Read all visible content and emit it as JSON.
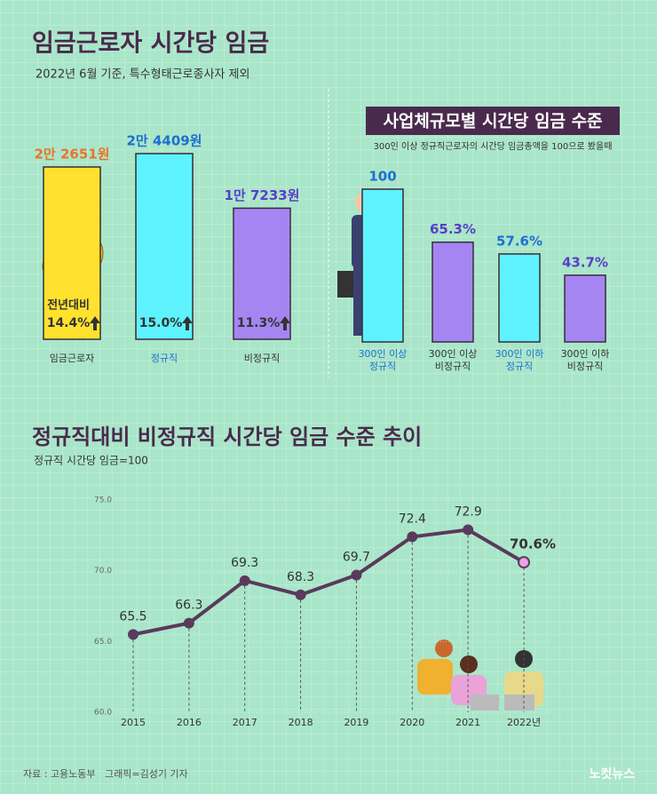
{
  "chart_data": [
    {
      "type": "bar",
      "title": "임금근로자 시간당 임금",
      "subtitle": "2022년 6월 기준, 특수형태근로종사자 제외",
      "categories": [
        "임금근로자",
        "정규직",
        "비정규직"
      ],
      "values": [
        22651,
        24409,
        17233
      ],
      "value_labels": [
        "2만 2651원",
        "2만 4409원",
        "1만 7233원"
      ],
      "colors": [
        "#ffe22e",
        "#5ef2ff",
        "#a585f2"
      ],
      "label_colors": [
        "#e8742a",
        "#1e6fd0",
        "#5a3ec8"
      ],
      "category_colors": [
        "#333333",
        "#1e6fd0",
        "#333333"
      ],
      "annotation": "전년대비",
      "growth_labels": [
        "14.4%",
        "15.0%",
        "11.3%"
      ]
    },
    {
      "type": "bar",
      "title": "사업체규모별 시간당 임금 수준",
      "subtitle": "300인 이상 정규직근로자의 시간당 임금총액을 100으로 봤을때",
      "categories": [
        "300인 이상 정규직",
        "300인 이상 비정규직",
        "300인 이하 정규직",
        "300인 이하 비정규직"
      ],
      "values": [
        100,
        65.3,
        57.6,
        43.7
      ],
      "value_labels": [
        "100",
        "65.3%",
        "57.6%",
        "43.7%"
      ],
      "colors": [
        "#5ef2ff",
        "#a585f2",
        "#5ef2ff",
        "#a585f2"
      ],
      "label_colors": [
        "#1e6fd0",
        "#5a3ec8",
        "#1e6fd0",
        "#5a3ec8"
      ],
      "category_colors": [
        "#1e6fd0",
        "#333333",
        "#1e6fd0",
        "#333333"
      ]
    },
    {
      "type": "line",
      "title": "정규직대비 비정규직 시간당 임금 수준 추이",
      "subtitle": "정규직 시간당 임금=100",
      "categories": [
        "2015",
        "2016",
        "2017",
        "2018",
        "2019",
        "2020",
        "2021",
        "2022년"
      ],
      "values": [
        65.5,
        66.3,
        69.3,
        68.3,
        69.7,
        72.4,
        72.9,
        70.6
      ],
      "value_labels": [
        "65.5",
        "66.3",
        "69.3",
        "68.3",
        "69.7",
        "72.4",
        "72.9",
        "70.6%"
      ],
      "color": "#5a3a5c",
      "last_marker_color": "#e9a3e6",
      "ylim": [
        60,
        75
      ],
      "yticks": [
        {
          "value": 60,
          "label": "60.0"
        },
        {
          "value": 65,
          "label": "65.0"
        },
        {
          "value": 70,
          "label": "70.0"
        },
        {
          "value": 75,
          "label": "75.0"
        }
      ],
      "grid": true
    }
  ],
  "footer": {
    "source": "자료 : 고용노동부",
    "credit": "그래픽=김성기 기자",
    "logo": "노컷뉴스"
  }
}
